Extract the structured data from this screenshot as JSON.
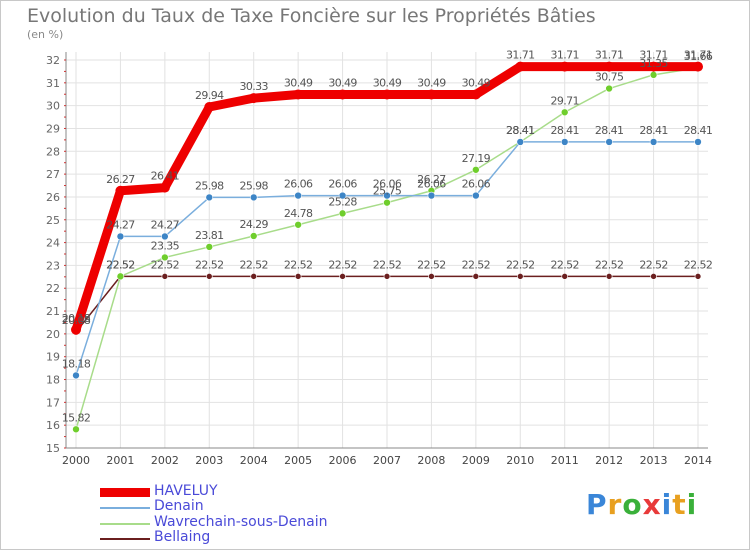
{
  "title": "Evolution du Taux de Taxe Foncière sur les Propriétés Bâties",
  "unit": "(en %)",
  "logo": {
    "text": "Proxiti",
    "letters": [
      "P",
      "r",
      "o",
      "x",
      "i",
      "t",
      "i"
    ],
    "colors": [
      "#3a86d8",
      "#e8a020",
      "#3ab03a",
      "#e83a3a",
      "#3a86d8",
      "#e8a020",
      "#3ab03a"
    ]
  },
  "chart_data": {
    "type": "line",
    "title": "Evolution du Taux de Taxe Foncière sur les Propriétés Bâties",
    "ylabel": "(en %)",
    "xlabel": "",
    "x": [
      "2000",
      "2001",
      "2002",
      "2003",
      "2004",
      "2005",
      "2006",
      "2007",
      "2008",
      "2009",
      "2010",
      "2011",
      "2012",
      "2013",
      "2014"
    ],
    "ylim": [
      15,
      32
    ],
    "yticks": [
      "15",
      "16",
      "17",
      "18",
      "19",
      "20",
      "21",
      "22",
      "23",
      "24",
      "25",
      "26",
      "27",
      "28",
      "29",
      "30",
      "31",
      "32"
    ],
    "grid": true,
    "series": [
      {
        "name": "Bellaing",
        "color": "#6b1f1f",
        "point_color": "#6b1f1f",
        "values": [
          20.08,
          22.52,
          22.52,
          22.52,
          22.52,
          22.52,
          22.52,
          22.52,
          22.52,
          22.52,
          22.52,
          22.52,
          22.52,
          22.52,
          22.52
        ],
        "labels": [
          "20.08",
          "22.52",
          "22.52",
          "22.52",
          "22.52",
          "22.52",
          "22.52",
          "22.52",
          "22.52",
          "22.52",
          "22.52",
          "22.52",
          "22.52",
          "22.52",
          "22.52"
        ]
      },
      {
        "name": "Wavrechain-sous-Denain",
        "color": "#a8dc8a",
        "point_color": "#6fce2c",
        "values": [
          15.82,
          22.52,
          23.35,
          23.81,
          24.29,
          24.78,
          25.28,
          25.75,
          26.27,
          27.19,
          28.41,
          29.71,
          30.75,
          31.35,
          31.66
        ],
        "labels": [
          "15.82",
          "22.52",
          "23.35",
          "23.81",
          "24.29",
          "24.78",
          "25.28",
          "25.75",
          "26.27",
          "27.19",
          "28.41",
          "29.71",
          "30.75",
          "31.35",
          "31.66"
        ]
      },
      {
        "name": "Denain",
        "color": "#7aaedd",
        "point_color": "#3d85c6",
        "values": [
          18.18,
          24.27,
          24.27,
          25.98,
          25.98,
          26.06,
          26.06,
          26.06,
          26.06,
          26.06,
          28.41,
          28.41,
          28.41,
          28.41,
          28.41
        ],
        "labels": [
          "18.18",
          "24.27",
          "24.27",
          "25.98",
          "25.98",
          "26.06",
          "26.06",
          "26.06",
          "26.06",
          "26.06",
          "28.41",
          "28.41",
          "28.41",
          "28.41",
          "28.41"
        ]
      },
      {
        "name": "HAVELUY",
        "color": "#ee0000",
        "point_color": "#ee0000",
        "values": [
          20.18,
          26.27,
          26.41,
          29.94,
          30.33,
          30.49,
          30.49,
          30.49,
          30.49,
          30.49,
          31.71,
          31.71,
          31.71,
          31.71,
          31.71
        ],
        "labels": [
          "20.18",
          "26.27",
          "26.41",
          "29.94",
          "30.33",
          "30.49",
          "30.49",
          "30.49",
          "30.49",
          "30.49",
          "31.71",
          "31.71",
          "31.71",
          "31.71",
          "31.71"
        ]
      }
    ],
    "legend": [
      "HAVELUY",
      "Denain",
      "Wavrechain-sous-Denain",
      "Bellaing"
    ],
    "legend_position": "bottom-left"
  }
}
